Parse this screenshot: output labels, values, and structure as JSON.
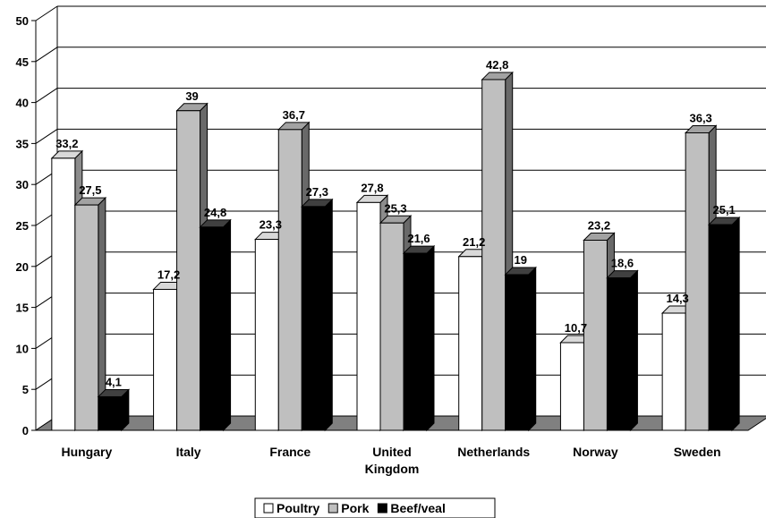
{
  "chart_data": {
    "type": "bar",
    "title": "",
    "xlabel": "",
    "ylabel": "",
    "categories": [
      [
        "Hungary"
      ],
      [
        "Italy"
      ],
      [
        "France"
      ],
      [
        "United",
        "Kingdom"
      ],
      [
        "Netherlands"
      ],
      [
        "Norway"
      ],
      [
        "Sweden"
      ]
    ],
    "series": [
      {
        "name": "Poultry",
        "color": "#ffffff",
        "values": [
          33.2,
          17.2,
          23.3,
          27.8,
          21.2,
          10.7,
          14.3
        ],
        "labels": [
          "33,2",
          "17,2",
          "23,3",
          "27,8",
          "21,2",
          "10,7",
          "14,3"
        ]
      },
      {
        "name": "Pork",
        "color": "#bfbfbf",
        "values": [
          27.5,
          39,
          36.7,
          25.3,
          42.8,
          23.2,
          36.3
        ],
        "labels": [
          "27,5",
          "39",
          "36,7",
          "25,3",
          "42,8",
          "23,2",
          "36,3"
        ]
      },
      {
        "name": "Beef/veal",
        "color": "#000000",
        "values": [
          4.1,
          24.8,
          27.3,
          21.6,
          19,
          18.6,
          25.1
        ],
        "labels": [
          "4,1",
          "24,8",
          "27,3",
          "21,6",
          "19",
          "18,6",
          "25,1"
        ]
      }
    ],
    "ylim": [
      0,
      50
    ],
    "yticks": [
      0,
      5,
      10,
      15,
      20,
      25,
      30,
      35,
      40,
      45,
      50
    ],
    "grid": true,
    "legend_position": "bottom-center",
    "floor_color": "#808080"
  }
}
